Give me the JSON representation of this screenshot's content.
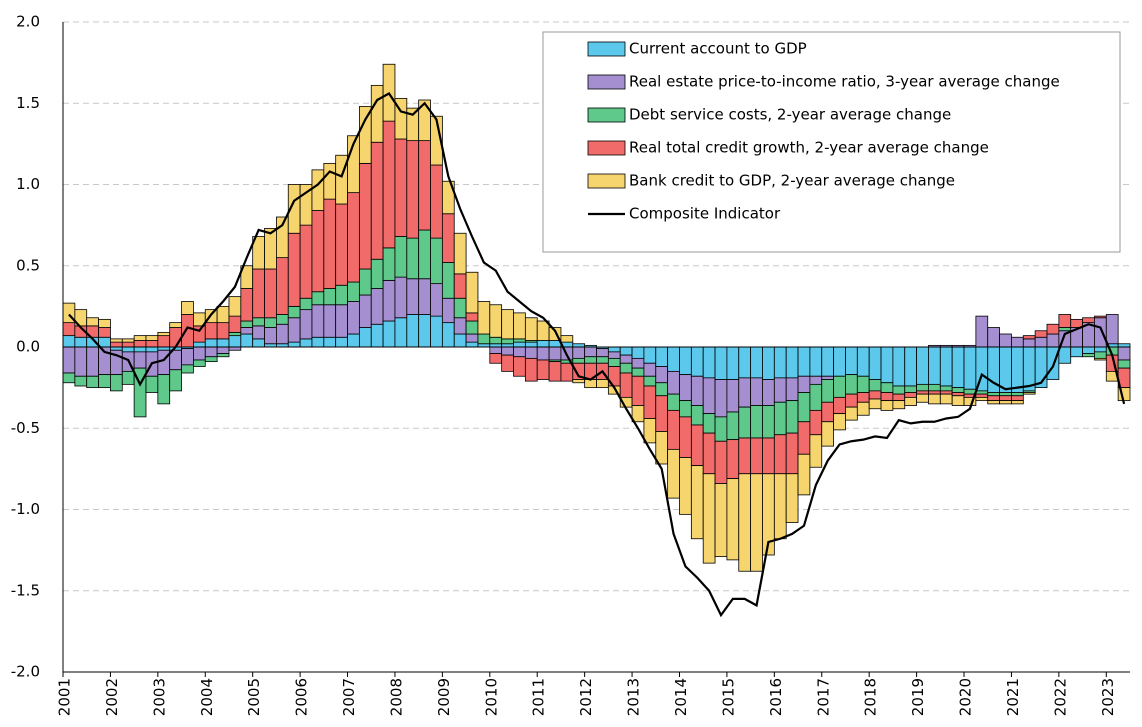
{
  "chart_data": {
    "type": "stacked-bar",
    "categories": [
      "2001",
      null,
      null,
      null,
      "2002",
      null,
      null,
      null,
      "2003",
      null,
      null,
      null,
      "2004",
      null,
      null,
      null,
      "2005",
      null,
      null,
      null,
      "2006",
      null,
      null,
      null,
      "2007",
      null,
      null,
      null,
      "2008",
      null,
      null,
      null,
      "2009",
      null,
      null,
      null,
      "2010",
      null,
      null,
      null,
      "2011",
      null,
      null,
      null,
      "2012",
      null,
      null,
      null,
      "2013",
      null,
      null,
      null,
      "2014",
      null,
      null,
      null,
      "2015",
      null,
      null,
      null,
      "2016",
      null,
      null,
      null,
      "2017",
      null,
      null,
      null,
      "2018",
      null,
      null,
      null,
      "2019",
      null,
      null,
      null,
      "2020",
      null,
      null,
      null,
      "2021",
      null,
      null,
      null,
      "2022",
      null,
      null,
      null,
      "2023",
      null
    ],
    "ylim": [
      -2,
      2
    ],
    "yticks": [
      {
        "value": -2,
        "label": "-2.0"
      },
      {
        "value": -1.5,
        "label": "-1.5"
      },
      {
        "value": -1,
        "label": "-1.0"
      },
      {
        "value": -0.5,
        "label": "-0.5"
      },
      {
        "value": 0,
        "label": "0.0"
      },
      {
        "value": 0.5,
        "label": "0.5"
      },
      {
        "value": 1,
        "label": "1.0"
      },
      {
        "value": 1.5,
        "label": "1.5"
      },
      {
        "value": 2,
        "label": "2.0"
      }
    ],
    "grid": true,
    "legend": "upper right",
    "series": [
      {
        "name": "Current account to GDP",
        "color": "#5bc8ec",
        "values": [
          0.07,
          0.06,
          0.06,
          0.06,
          -0.02,
          -0.03,
          -0.03,
          -0.03,
          -0.02,
          -0.02,
          -0.01,
          0.03,
          0.05,
          0.05,
          0.07,
          0.08,
          0.05,
          0.02,
          0.02,
          0.03,
          0.05,
          0.06,
          0.06,
          0.06,
          0.08,
          0.12,
          0.14,
          0.16,
          0.18,
          0.2,
          0.2,
          0.19,
          0.15,
          0.08,
          0.03,
          0.02,
          0.02,
          0.02,
          0.03,
          0.03,
          0.04,
          0.04,
          0.03,
          0.02,
          0.01,
          -0.01,
          -0.03,
          -0.05,
          -0.07,
          -0.1,
          -0.12,
          -0.15,
          -0.17,
          -0.18,
          -0.19,
          -0.2,
          -0.2,
          -0.19,
          -0.19,
          -0.2,
          -0.19,
          -0.19,
          -0.18,
          -0.18,
          -0.18,
          -0.18,
          -0.17,
          -0.18,
          -0.2,
          -0.22,
          -0.24,
          -0.24,
          -0.23,
          -0.23,
          -0.24,
          -0.25,
          -0.26,
          -0.27,
          -0.28,
          -0.28,
          -0.28,
          -0.27,
          -0.25,
          -0.2,
          -0.1,
          -0.06,
          -0.04,
          -0.03,
          0.02,
          0.02
        ]
      },
      {
        "name": "Real estate price-to-income ratio, 3-year average change",
        "color": "#a58fd0",
        "values": [
          -0.16,
          -0.18,
          -0.18,
          -0.17,
          -0.15,
          -0.12,
          -0.1,
          -0.15,
          -0.15,
          -0.12,
          -0.1,
          -0.08,
          -0.06,
          -0.04,
          -0.02,
          0.04,
          0.08,
          0.1,
          0.12,
          0.15,
          0.18,
          0.2,
          0.2,
          0.2,
          0.2,
          0.2,
          0.22,
          0.25,
          0.25,
          0.22,
          0.22,
          0.2,
          0.15,
          0.1,
          0.05,
          0,
          -0.04,
          -0.05,
          -0.06,
          -0.07,
          -0.08,
          -0.08,
          -0.08,
          -0.07,
          -0.06,
          -0.05,
          -0.04,
          -0.05,
          -0.06,
          -0.08,
          -0.1,
          -0.14,
          -0.16,
          -0.18,
          -0.22,
          -0.23,
          -0.2,
          -0.18,
          -0.17,
          -0.16,
          -0.15,
          -0.14,
          -0.1,
          -0.05,
          -0.02,
          0,
          0,
          0,
          0,
          0,
          0,
          0,
          0,
          0.01,
          0.01,
          0.01,
          0.01,
          0.19,
          0.12,
          0.08,
          0.06,
          0.05,
          0.06,
          0.08,
          0.1,
          0.12,
          0.15,
          0.18,
          0.18,
          -0.08
        ]
      },
      {
        "name": "Debt service costs, 2-year average change",
        "color": "#5ec98a",
        "values": [
          -0.06,
          -0.06,
          -0.07,
          -0.08,
          -0.1,
          -0.08,
          -0.3,
          -0.1,
          -0.18,
          -0.13,
          -0.05,
          -0.04,
          -0.03,
          -0.02,
          0.02,
          0.04,
          0.05,
          0.06,
          0.06,
          0.07,
          0.07,
          0.08,
          0.1,
          0.12,
          0.12,
          0.16,
          0.18,
          0.2,
          0.25,
          0.25,
          0.3,
          0.28,
          0.22,
          0.12,
          0.08,
          0.06,
          0.04,
          0.03,
          0.02,
          0.01,
          0,
          -0.01,
          -0.02,
          -0.03,
          -0.04,
          -0.04,
          -0.05,
          -0.06,
          -0.05,
          -0.06,
          -0.08,
          -0.1,
          -0.1,
          -0.12,
          -0.12,
          -0.15,
          -0.17,
          -0.19,
          -0.2,
          -0.2,
          -0.2,
          -0.2,
          -0.18,
          -0.16,
          -0.14,
          -0.13,
          -0.12,
          -0.1,
          -0.07,
          -0.06,
          -0.05,
          -0.04,
          -0.04,
          -0.04,
          -0.03,
          -0.03,
          -0.03,
          -0.02,
          -0.02,
          -0.02,
          -0.02,
          -0.01,
          0,
          0,
          0.02,
          0,
          -0.02,
          -0.04,
          -0.05,
          -0.05
        ]
      },
      {
        "name": "Real total credit growth, 2-year average change",
        "color": "#f26b6b",
        "values": [
          0.08,
          0.07,
          0.07,
          0.06,
          0.03,
          0.03,
          0.04,
          0.04,
          0.07,
          0.12,
          0.2,
          0.1,
          0.1,
          0.1,
          0.1,
          0.2,
          0.3,
          0.3,
          0.35,
          0.45,
          0.45,
          0.5,
          0.55,
          0.5,
          0.55,
          0.65,
          0.72,
          0.78,
          0.6,
          0.6,
          0.55,
          0.45,
          0.3,
          0.15,
          0.05,
          0,
          -0.06,
          -0.1,
          -0.12,
          -0.14,
          -0.12,
          -0.12,
          -0.11,
          -0.1,
          -0.1,
          -0.1,
          -0.12,
          -0.15,
          -0.18,
          -0.2,
          -0.22,
          -0.24,
          -0.25,
          -0.25,
          -0.25,
          -0.26,
          -0.24,
          -0.22,
          -0.22,
          -0.22,
          -0.24,
          -0.25,
          -0.2,
          -0.15,
          -0.12,
          -0.1,
          -0.08,
          -0.06,
          -0.05,
          -0.05,
          -0.04,
          -0.03,
          -0.02,
          -0.02,
          -0.02,
          -0.02,
          -0.02,
          -0.02,
          -0.03,
          -0.03,
          -0.03,
          0.02,
          0.04,
          0.06,
          0.08,
          0.05,
          0.03,
          0.01,
          -0.1,
          -0.12
        ]
      },
      {
        "name": "Bank credit to GDP, 2-year average change",
        "color": "#f6d56e",
        "values": [
          0.12,
          0.1,
          0.05,
          0.05,
          0.02,
          0.02,
          0.03,
          0.03,
          0.02,
          0.03,
          0.08,
          0.08,
          0.08,
          0.1,
          0.12,
          0.14,
          0.2,
          0.25,
          0.25,
          0.3,
          0.25,
          0.25,
          0.22,
          0.3,
          0.35,
          0.35,
          0.35,
          0.35,
          0.25,
          0.2,
          0.25,
          0.3,
          0.2,
          0.25,
          0.25,
          0.2,
          0.2,
          0.18,
          0.16,
          0.14,
          0.12,
          0.08,
          0.04,
          -0.02,
          -0.05,
          -0.05,
          -0.05,
          -0.06,
          -0.1,
          -0.15,
          -0.2,
          -0.3,
          -0.35,
          -0.45,
          -0.55,
          -0.45,
          -0.5,
          -0.6,
          -0.6,
          -0.5,
          -0.4,
          -0.3,
          -0.25,
          -0.2,
          -0.15,
          -0.1,
          -0.08,
          -0.08,
          -0.06,
          -0.06,
          -0.05,
          -0.05,
          -0.05,
          -0.06,
          -0.06,
          -0.06,
          -0.05,
          -0.02,
          -0.02,
          -0.02,
          -0.02,
          -0.01,
          0,
          0,
          0,
          0,
          0,
          -0.01,
          -0.06,
          -0.08
        ]
      },
      {
        "name": "Composite Indicator",
        "type": "line",
        "color": "#000000",
        "values": [
          0.2,
          0.12,
          0.05,
          -0.03,
          -0.05,
          -0.08,
          -0.23,
          -0.1,
          -0.08,
          0,
          0.12,
          0.1,
          0.2,
          0.28,
          0.37,
          0.55,
          0.72,
          0.7,
          0.75,
          0.9,
          0.95,
          1,
          1.08,
          1.05,
          1.25,
          1.4,
          1.52,
          1.56,
          1.45,
          1.43,
          1.5,
          1.4,
          1.05,
          0.85,
          0.68,
          0.52,
          0.47,
          0.34,
          0.28,
          0.22,
          0.18,
          0.1,
          -0.05,
          -0.18,
          -0.2,
          -0.15,
          -0.25,
          -0.38,
          -0.5,
          -0.63,
          -0.75,
          -1.15,
          -1.35,
          -1.42,
          -1.5,
          -1.65,
          -1.55,
          -1.55,
          -1.59,
          -1.2,
          -1.18,
          -1.15,
          -1.1,
          -0.85,
          -0.7,
          -0.6,
          -0.58,
          -0.57,
          -0.55,
          -0.56,
          -0.45,
          -0.47,
          -0.46,
          -0.46,
          -0.44,
          -0.43,
          -0.38,
          -0.17,
          -0.22,
          -0.26,
          -0.25,
          -0.24,
          -0.22,
          -0.12,
          0.08,
          0.11,
          0.14,
          0.12,
          -0.05,
          -0.35
        ]
      }
    ]
  }
}
